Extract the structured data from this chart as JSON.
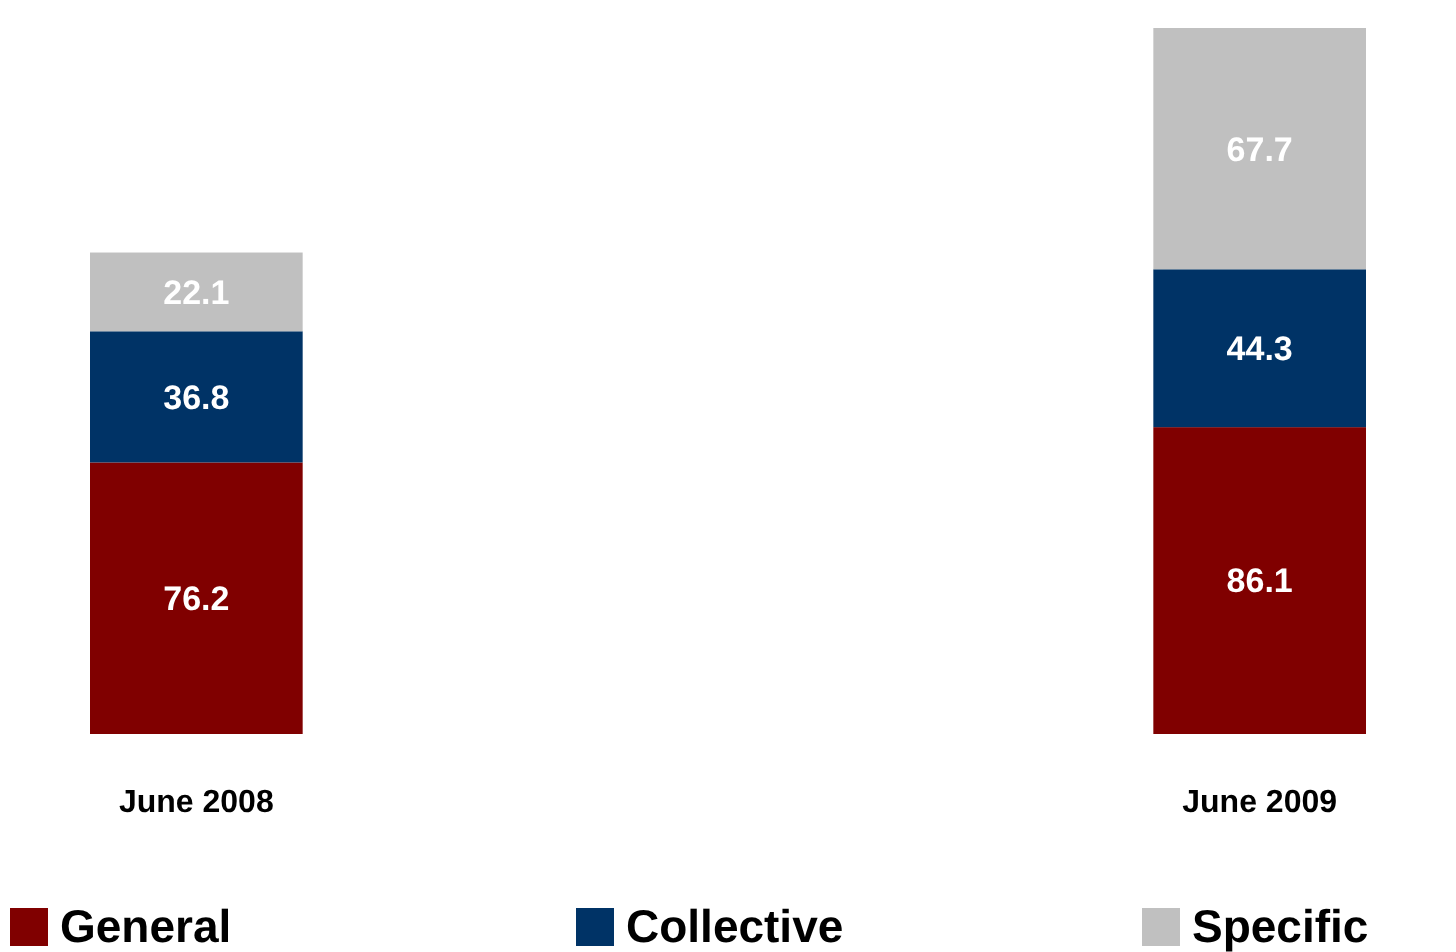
{
  "chart_data": {
    "type": "bar",
    "stacked": true,
    "data_labels": true,
    "legend": "bottom",
    "categories": [
      "June 2008",
      "June 2009"
    ],
    "series": [
      {
        "name": "General",
        "color": "#800000",
        "values": [
          76.2,
          86.1
        ]
      },
      {
        "name": "Collective",
        "color": "#003366",
        "values": [
          36.8,
          44.3
        ]
      },
      {
        "name": "Specific",
        "color": "#c0c0c0",
        "values": [
          22.1,
          67.7
        ]
      }
    ]
  }
}
